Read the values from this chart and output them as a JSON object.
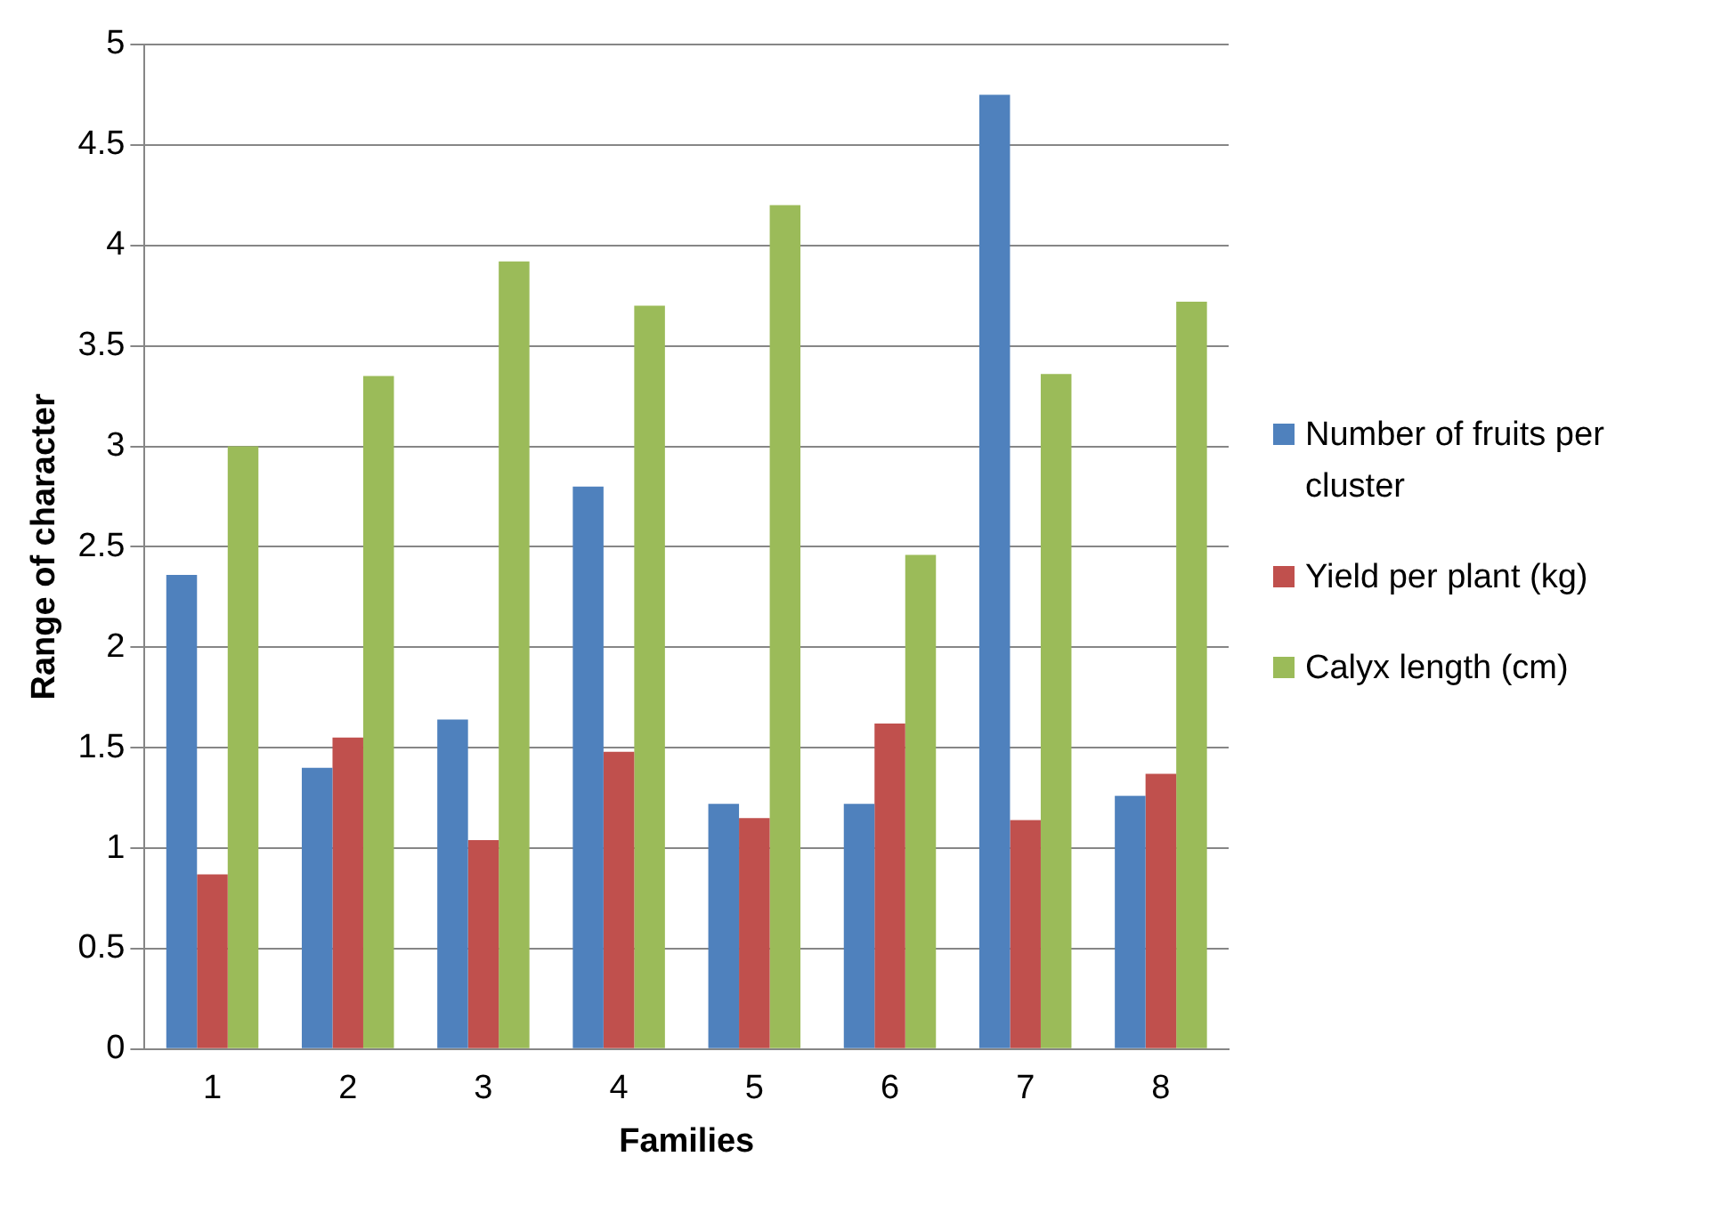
{
  "chart_data": {
    "type": "bar",
    "xlabel": "Families",
    "ylabel": "Range of character",
    "categories": [
      "1",
      "2",
      "3",
      "4",
      "5",
      "6",
      "7",
      "8"
    ],
    "series": [
      {
        "name": "Number of fruits per cluster",
        "color": "#4f81bd",
        "values": [
          2.36,
          1.4,
          1.64,
          2.8,
          1.22,
          1.22,
          4.75,
          1.26
        ]
      },
      {
        "name": "Yield per plant (kg)",
        "color": "#c0504d",
        "values": [
          0.87,
          1.55,
          1.04,
          1.48,
          1.15,
          1.62,
          1.14,
          1.37
        ]
      },
      {
        "name": "Calyx length (cm)",
        "color": "#9bbb59",
        "values": [
          3.0,
          3.35,
          3.92,
          3.7,
          4.2,
          2.46,
          3.36,
          3.72
        ]
      }
    ],
    "ylim": [
      0,
      5
    ],
    "yticks": [
      0,
      0.5,
      1,
      1.5,
      2,
      2.5,
      3,
      3.5,
      4,
      4.5,
      5
    ],
    "grid": "y",
    "legend": "right"
  }
}
